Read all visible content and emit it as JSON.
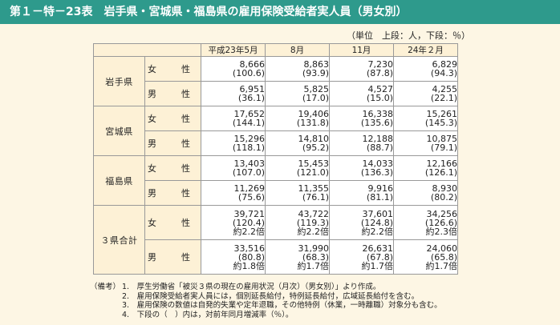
{
  "title": "第１－特－23表　岩手県・宮城県・福島県の雇用保険受給者実人員（男女別）",
  "unit": "（単位　上段：人，下段：％）",
  "columns": [
    "平成23年5月",
    "8月",
    "11月",
    "24年２月"
  ],
  "sex_labels": {
    "female": "女　性",
    "male": "男　性"
  },
  "prefectures": [
    {
      "name": "岩手県",
      "rows": [
        {
          "sex": "女　性",
          "values": [
            [
              "8,666",
              "(100.6)"
            ],
            [
              "8,863",
              "(93.9)"
            ],
            [
              "7,230",
              "(87.8)"
            ],
            [
              "6,829",
              "(94.3)"
            ]
          ]
        },
        {
          "sex": "男　性",
          "values": [
            [
              "6,951",
              "(36.1)"
            ],
            [
              "5,825",
              "(17.0)"
            ],
            [
              "4,527",
              "(15.0)"
            ],
            [
              "4,255",
              "(22.1)"
            ]
          ]
        }
      ]
    },
    {
      "name": "宮城県",
      "rows": [
        {
          "sex": "女　性",
          "values": [
            [
              "17,652",
              "(144.1)"
            ],
            [
              "19,406",
              "(131.8)"
            ],
            [
              "16,338",
              "(135.6)"
            ],
            [
              "15,261",
              "(145.3)"
            ]
          ]
        },
        {
          "sex": "男　性",
          "values": [
            [
              "15,296",
              "(118.1)"
            ],
            [
              "14,810",
              "(95.2)"
            ],
            [
              "12,188",
              "(88.7)"
            ],
            [
              "10,875",
              "(79.1)"
            ]
          ]
        }
      ]
    },
    {
      "name": "福島県",
      "rows": [
        {
          "sex": "女　性",
          "values": [
            [
              "13,403",
              "(107.0)"
            ],
            [
              "15,453",
              "(121.0)"
            ],
            [
              "14,033",
              "(136.3)"
            ],
            [
              "12,166",
              "(126.1)"
            ]
          ]
        },
        {
          "sex": "男　性",
          "values": [
            [
              "11,269",
              "(75.6)"
            ],
            [
              "11,355",
              "(76.1)"
            ],
            [
              "9,916",
              "(81.1)"
            ],
            [
              "8,930",
              "(80.2)"
            ]
          ]
        }
      ]
    },
    {
      "name": "３県合計",
      "rows": [
        {
          "sex": "女　性",
          "values": [
            [
              "39,721",
              "(120.4)",
              "約2.2倍"
            ],
            [
              "43,722",
              "(119.3)",
              "約2.2倍"
            ],
            [
              "37,601",
              "(124.8)",
              "約2.2倍"
            ],
            [
              "34,256",
              "(126.6)",
              "約2.3倍"
            ]
          ]
        },
        {
          "sex": "男　性",
          "values": [
            [
              "33,516",
              "(80.8)",
              "約1.8倍"
            ],
            [
              "31,990",
              "(68.3)",
              "約1.7倍"
            ],
            [
              "26,631",
              "(67.8)",
              "約1.7倍"
            ],
            [
              "24,060",
              "(65.8)",
              "約1.7倍"
            ]
          ]
        }
      ]
    }
  ],
  "notes": {
    "prefix": "（備考）",
    "items": [
      "1.　厚生労働省「被災３県の現在の雇用状況（月次）（男女別）」より作成。",
      "2.　雇用保険受給者実人員には，個別延長給付，特例延長給付，広域延長給付を含む。",
      "3.　雇用保険の数値は自発的失業や定年退職，その他特例（休業，一時離職）対象分も含む。",
      "4.　下段の（　）内は，対前年同月増減率（％）。"
    ]
  }
}
